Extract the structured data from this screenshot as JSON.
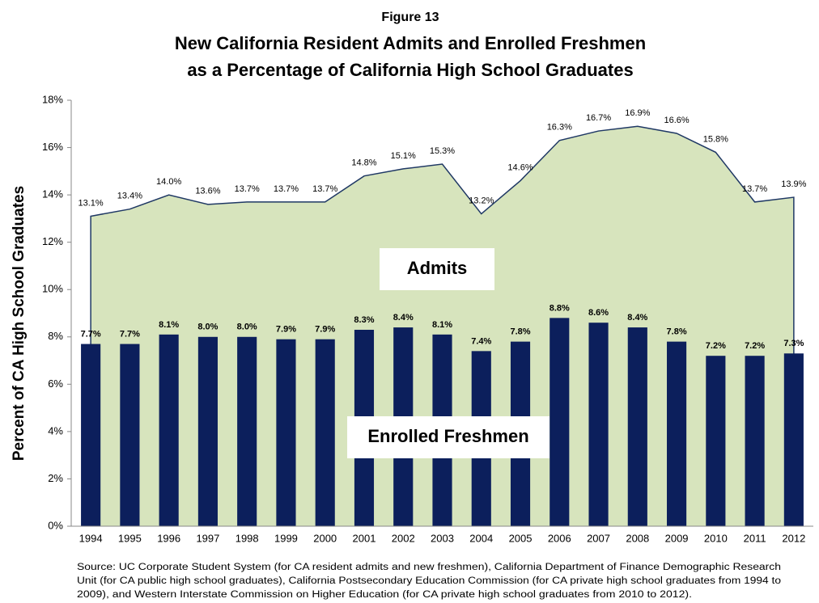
{
  "chart_data": {
    "type": "combo",
    "figure_label": "Figure 13",
    "title_lines": [
      "New California Resident Admits and Enrolled Freshmen",
      "as a Percentage of California High School Graduates"
    ],
    "y_label": "Percent of CA High School Graduates",
    "categories": [
      "1994",
      "1995",
      "1996",
      "1997",
      "1998",
      "1999",
      "2000",
      "2001",
      "2002",
      "2003",
      "2004",
      "2005",
      "2006",
      "2007",
      "2008",
      "2009",
      "2010",
      "2011",
      "2012"
    ],
    "series": [
      {
        "name": "Admits",
        "type": "area",
        "color": "#d7e4bd",
        "line_color": "#1f3864",
        "values": [
          13.1,
          13.4,
          14.0,
          13.6,
          13.7,
          13.7,
          13.7,
          14.8,
          15.1,
          15.3,
          13.2,
          14.6,
          16.3,
          16.7,
          16.9,
          16.6,
          15.8,
          13.7,
          13.9
        ],
        "value_labels": [
          "13.1%",
          "13.4%",
          "14.0%",
          "13.6%",
          "13.7%",
          "13.7%",
          "13.7%",
          "14.8%",
          "15.1%",
          "15.3%",
          "13.2%",
          "14.6%",
          "16.3%",
          "16.7%",
          "16.9%",
          "16.6%",
          "15.8%",
          "13.7%",
          "13.9%"
        ]
      },
      {
        "name": "Enrolled Freshmen",
        "type": "bar",
        "color": "#0c1f5c",
        "values": [
          7.7,
          7.7,
          8.1,
          8.0,
          8.0,
          7.9,
          7.9,
          8.3,
          8.4,
          8.1,
          7.4,
          7.8,
          8.8,
          8.6,
          8.4,
          7.8,
          7.2,
          7.2,
          7.3
        ],
        "value_labels": [
          "7.7%",
          "7.7%",
          "8.1%",
          "8.0%",
          "8.0%",
          "7.9%",
          "7.9%",
          "8.3%",
          "8.4%",
          "8.1%",
          "7.4%",
          "7.8%",
          "8.8%",
          "8.6%",
          "8.4%",
          "7.8%",
          "7.2%",
          "7.2%",
          "7.3%"
        ]
      }
    ],
    "ylim": [
      0,
      18
    ],
    "yticks": [
      {
        "value": 0,
        "label": "0%"
      },
      {
        "value": 2,
        "label": "2%"
      },
      {
        "value": 4,
        "label": "4%"
      },
      {
        "value": 6,
        "label": "6%"
      },
      {
        "value": 8,
        "label": "8%"
      },
      {
        "value": 10,
        "label": "10%"
      },
      {
        "value": 12,
        "label": "12%"
      },
      {
        "value": 14,
        "label": "14%"
      },
      {
        "value": 16,
        "label": "16%"
      },
      {
        "value": 18,
        "label": "18%"
      }
    ],
    "source_lines": [
      "Source:  UC Corporate Student System (for CA resident admits and new freshmen), California Department of Finance Demographic Research",
      "Unit (for CA public high school graduates), California Postsecondary Education Commission (for CA private high school graduates from 1994 to",
      "2009), and Western Interstate Commission on Higher Education (for CA private high school graduates from 2010 to 2012)."
    ]
  }
}
